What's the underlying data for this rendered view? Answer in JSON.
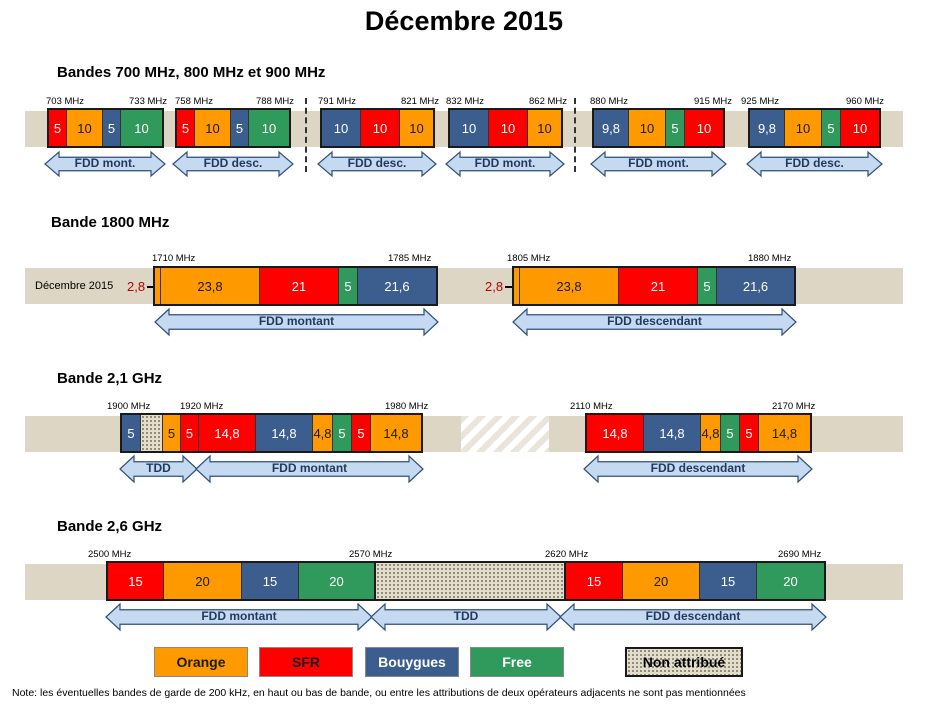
{
  "title": "Décembre 2015",
  "colors": {
    "orange": "#ff9900",
    "sfr": "#ff0000",
    "bouygues": "#3b5e8f",
    "free": "#2f9a5b",
    "strip": "#ddd6c4",
    "arrow_fill": "#c5d9f1",
    "arrow_stroke": "#2e4f7a"
  },
  "sections": {
    "s1": {
      "title": "Bandes 700 MHz, 800 MHz et 900 MHz",
      "blocks": [
        {
          "f1": "703 MHz",
          "f2": "733 MHz",
          "segs": [
            {
              "t": "5",
              "op": "sfr"
            },
            {
              "t": "10",
              "op": "orange"
            },
            {
              "t": "5",
              "op": "bouygues"
            },
            {
              "t": "10",
              "op": "free"
            }
          ]
        },
        {
          "f1": "758 MHz",
          "f2": "788 MHz",
          "segs": [
            {
              "t": "5",
              "op": "sfr"
            },
            {
              "t": "10",
              "op": "orange"
            },
            {
              "t": "5",
              "op": "bouygues"
            },
            {
              "t": "10",
              "op": "free"
            }
          ]
        },
        {
          "f1": "791 MHz",
          "f2": "821 MHz",
          "segs": [
            {
              "t": "10",
              "op": "bouygues"
            },
            {
              "t": "10",
              "op": "sfr"
            },
            {
              "t": "10",
              "op": "orange"
            }
          ]
        },
        {
          "f1": "832 MHz",
          "f2": "862 MHz",
          "segs": [
            {
              "t": "10",
              "op": "bouygues"
            },
            {
              "t": "10",
              "op": "sfr"
            },
            {
              "t": "10",
              "op": "orange"
            }
          ]
        },
        {
          "f1": "880 MHz",
          "f2": "915 MHz",
          "segs": [
            {
              "t": "9,8",
              "op": "bouygues"
            },
            {
              "t": "10",
              "op": "orange"
            },
            {
              "t": "5",
              "op": "free"
            },
            {
              "t": "10",
              "op": "sfr"
            }
          ]
        },
        {
          "f1": "925 MHz",
          "f2": "960 MHz",
          "segs": [
            {
              "t": "9,8",
              "op": "bouygues"
            },
            {
              "t": "10",
              "op": "orange"
            },
            {
              "t": "5",
              "op": "free"
            },
            {
              "t": "10",
              "op": "sfr"
            }
          ]
        }
      ],
      "arrows": [
        "FDD mont.",
        "FDD desc.",
        "FDD desc.",
        "FDD mont.",
        "FDD mont.",
        "FDD desc."
      ]
    },
    "s2": {
      "title": "Bande 1800 MHz",
      "row_label": "Décembre 2015",
      "small_value": "2,8",
      "blocks": [
        {
          "f1": "1710 MHz",
          "f2": "1785 MHz",
          "segs": [
            {
              "t": "23,8",
              "op": "orange"
            },
            {
              "t": "21",
              "op": "sfr"
            },
            {
              "t": "5",
              "op": "free"
            },
            {
              "t": "21,6",
              "op": "bouygues"
            }
          ]
        },
        {
          "f1": "1805 MHz",
          "f2": "1880 MHz",
          "segs": [
            {
              "t": "23,8",
              "op": "orange"
            },
            {
              "t": "21",
              "op": "sfr"
            },
            {
              "t": "5",
              "op": "free"
            },
            {
              "t": "21,6",
              "op": "bouygues"
            }
          ]
        }
      ],
      "arrows": [
        "FDD montant",
        "FDD descendant"
      ]
    },
    "s3": {
      "title": "Bande 2,1 GHz",
      "freqs": [
        "1900 MHz",
        "1920 MHz",
        "1980 MHz",
        "2110 MHz",
        "2170 MHz"
      ],
      "block_left": [
        {
          "t": "5",
          "op": "bouygues"
        },
        {
          "t": "",
          "op": "na"
        },
        {
          "t": "5",
          "op": "orange"
        },
        {
          "t": "5",
          "op": "sfr"
        },
        {
          "t": "14,8",
          "op": "sfr"
        },
        {
          "t": "14,8",
          "op": "bouygues"
        },
        {
          "t": "4,8",
          "op": "orange"
        },
        {
          "t": "5",
          "op": "free"
        },
        {
          "t": "5",
          "op": "sfr"
        },
        {
          "t": "14,8",
          "op": "orange"
        }
      ],
      "block_right": [
        {
          "t": "14,8",
          "op": "sfr"
        },
        {
          "t": "14,8",
          "op": "bouygues"
        },
        {
          "t": "4,8",
          "op": "orange"
        },
        {
          "t": "5",
          "op": "free"
        },
        {
          "t": "5",
          "op": "sfr"
        },
        {
          "t": "14,8",
          "op": "orange"
        }
      ],
      "arrows": [
        "TDD",
        "FDD montant",
        "FDD descendant"
      ]
    },
    "s4": {
      "title": "Bande 2,6 GHz",
      "freqs": [
        "2500 MHz",
        "2570 MHz",
        "2620 MHz",
        "2690 MHz"
      ],
      "block_left": [
        {
          "t": "15",
          "op": "sfr"
        },
        {
          "t": "20",
          "op": "orange"
        },
        {
          "t": "15",
          "op": "bouygues"
        },
        {
          "t": "20",
          "op": "free"
        }
      ],
      "block_right": [
        {
          "t": "15",
          "op": "sfr"
        },
        {
          "t": "20",
          "op": "orange"
        },
        {
          "t": "15",
          "op": "bouygues"
        },
        {
          "t": "20",
          "op": "free"
        }
      ],
      "arrows": [
        "FDD montant",
        "TDD",
        "FDD descendant"
      ]
    }
  },
  "legend": {
    "orange": "Orange",
    "sfr": "SFR",
    "bouygues": "Bouygues",
    "free": "Free",
    "na": "Non attribué"
  },
  "note": "Note: les éventuelles bandes de garde de 200 kHz, en haut ou bas de bande, ou entre les attributions de deux opérateurs adjacents ne sont pas mentionnées"
}
